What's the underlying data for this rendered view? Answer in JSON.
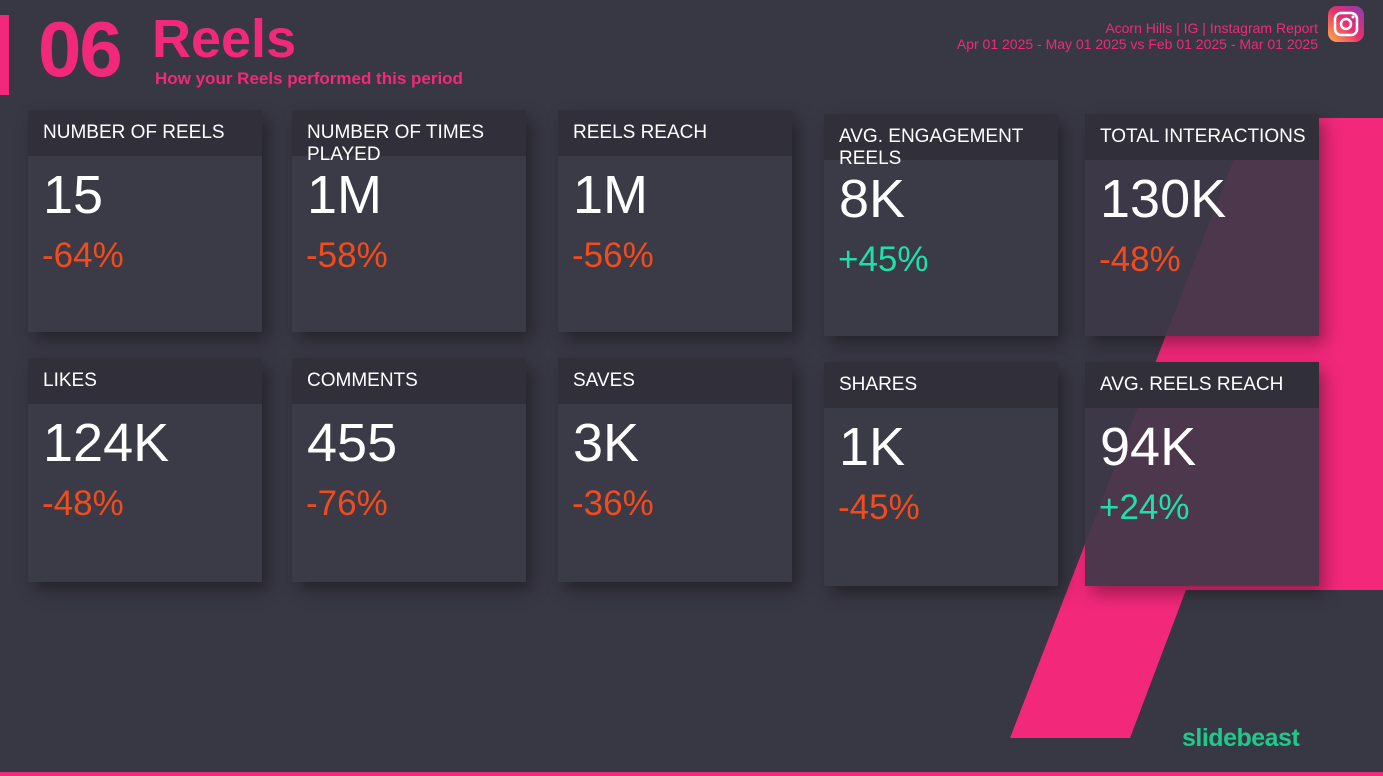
{
  "header": {
    "number": "06",
    "title": "Reels",
    "subtitle": "How your Reels performed this period",
    "report": "Acorn Hills | IG | Instagram Report",
    "period": "Apr 01 2025 - May 01 2025 vs Feb 01 2025 - Mar 01 2025"
  },
  "cards": [
    {
      "label": "NUMBER OF REELS",
      "value": "15",
      "change": "-64%",
      "color": "#f24b1c"
    },
    {
      "label": "NUMBER OF TIMES PLAYED",
      "value": "1M",
      "change": "-58%",
      "color": "#f24b1c"
    },
    {
      "label": "REELS REACH",
      "value": "1M",
      "change": "-56%",
      "color": "#f24b1c"
    },
    {
      "label": "AVG. ENGAGEMENT REELS",
      "value": "8K",
      "change": "+45%",
      "color": "#1ee0a8"
    },
    {
      "label": "TOTAL INTERACTIONS",
      "value": "130K",
      "change": "-48%",
      "color": "#f24b1c"
    },
    {
      "label": "LIKES",
      "value": "124K",
      "change": "-48%",
      "color": "#f24b1c"
    },
    {
      "label": "COMMENTS",
      "value": "455",
      "change": "-76%",
      "color": "#f24b1c"
    },
    {
      "label": "SAVES",
      "value": "3K",
      "change": "-36%",
      "color": "#f24b1c"
    },
    {
      "label": "SHARES",
      "value": "1K",
      "change": "-45%",
      "color": "#f24b1c"
    },
    {
      "label": "AVG. REELS REACH",
      "value": "94K",
      "change": "+24%",
      "color": "#1ee0a8"
    }
  ],
  "brand": "slidebeast"
}
